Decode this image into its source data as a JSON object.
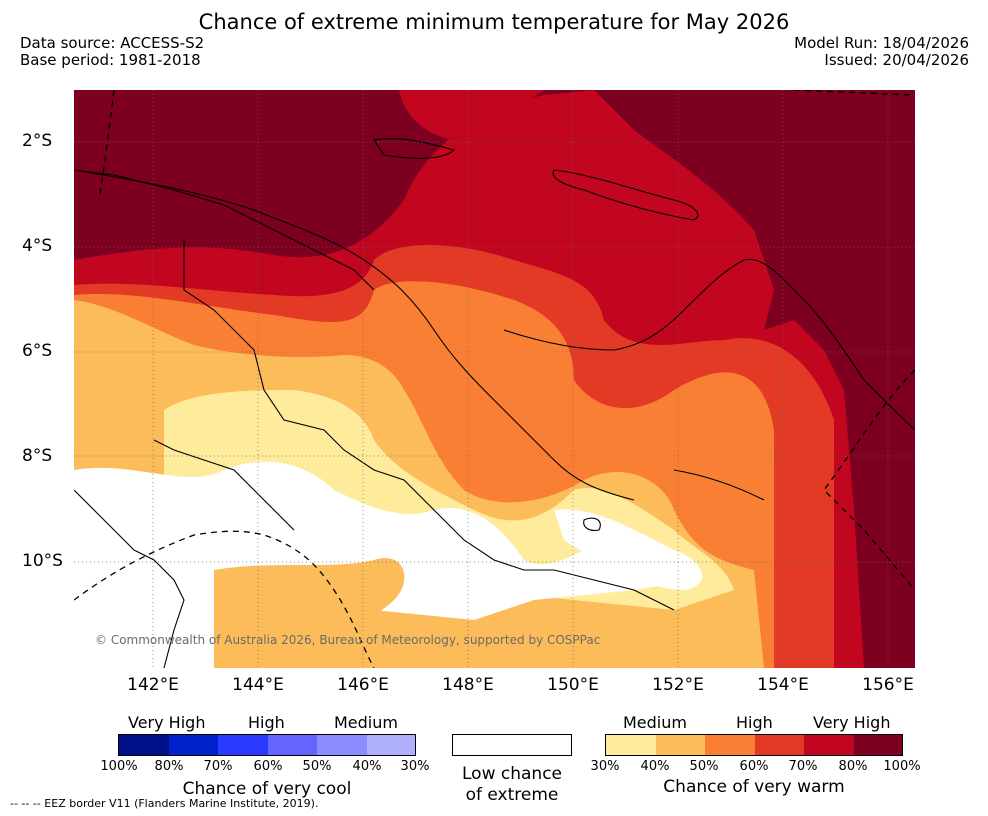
{
  "title": "Chance of extreme minimum temperature for May 2026",
  "data_source": "Data source: ACCESS-S2",
  "base_period": "Base period: 1981-2018",
  "model_run": "Model Run: 18/04/2026",
  "issued": "Issued: 20/04/2026",
  "copyright": "© Commonwealth of Australia 2026, Bureau of Meteorology, supported by COSPPac",
  "map": {
    "lat_labels": [
      "2°S",
      "4°S",
      "6°S",
      "8°S",
      "10°S"
    ],
    "lon_labels": [
      "142°E",
      "144°E",
      "146°E",
      "148°E",
      "150°E",
      "152°E",
      "154°E",
      "156°E"
    ]
  },
  "legend": {
    "cool": {
      "headers": [
        "Very High",
        "High",
        "Medium"
      ],
      "colors": [
        "#00108c",
        "#0021cc",
        "#2a3aff",
        "#6465ff",
        "#8c8cff",
        "#b0b0ff"
      ],
      "ticks": [
        "100%",
        "80%",
        "70%",
        "60%",
        "50%",
        "40%",
        "30%"
      ],
      "caption": "Chance of very cool"
    },
    "neutral": {
      "color": "#ffffff",
      "caption_line1": "Low chance",
      "caption_line2": "of extreme"
    },
    "warm": {
      "headers": [
        "Medium",
        "High",
        "Very High"
      ],
      "colors": [
        "#ffeb9c",
        "#fcbc5a",
        "#f97f35",
        "#e33a26",
        "#c2061f",
        "#7d0020"
      ],
      "ticks": [
        "30%",
        "40%",
        "50%",
        "60%",
        "70%",
        "80%",
        "100%"
      ],
      "caption": "Chance of very warm"
    }
  },
  "eez_note": "--  --  -- EEZ border V11 (Flanders Marine Institute, 2019)."
}
